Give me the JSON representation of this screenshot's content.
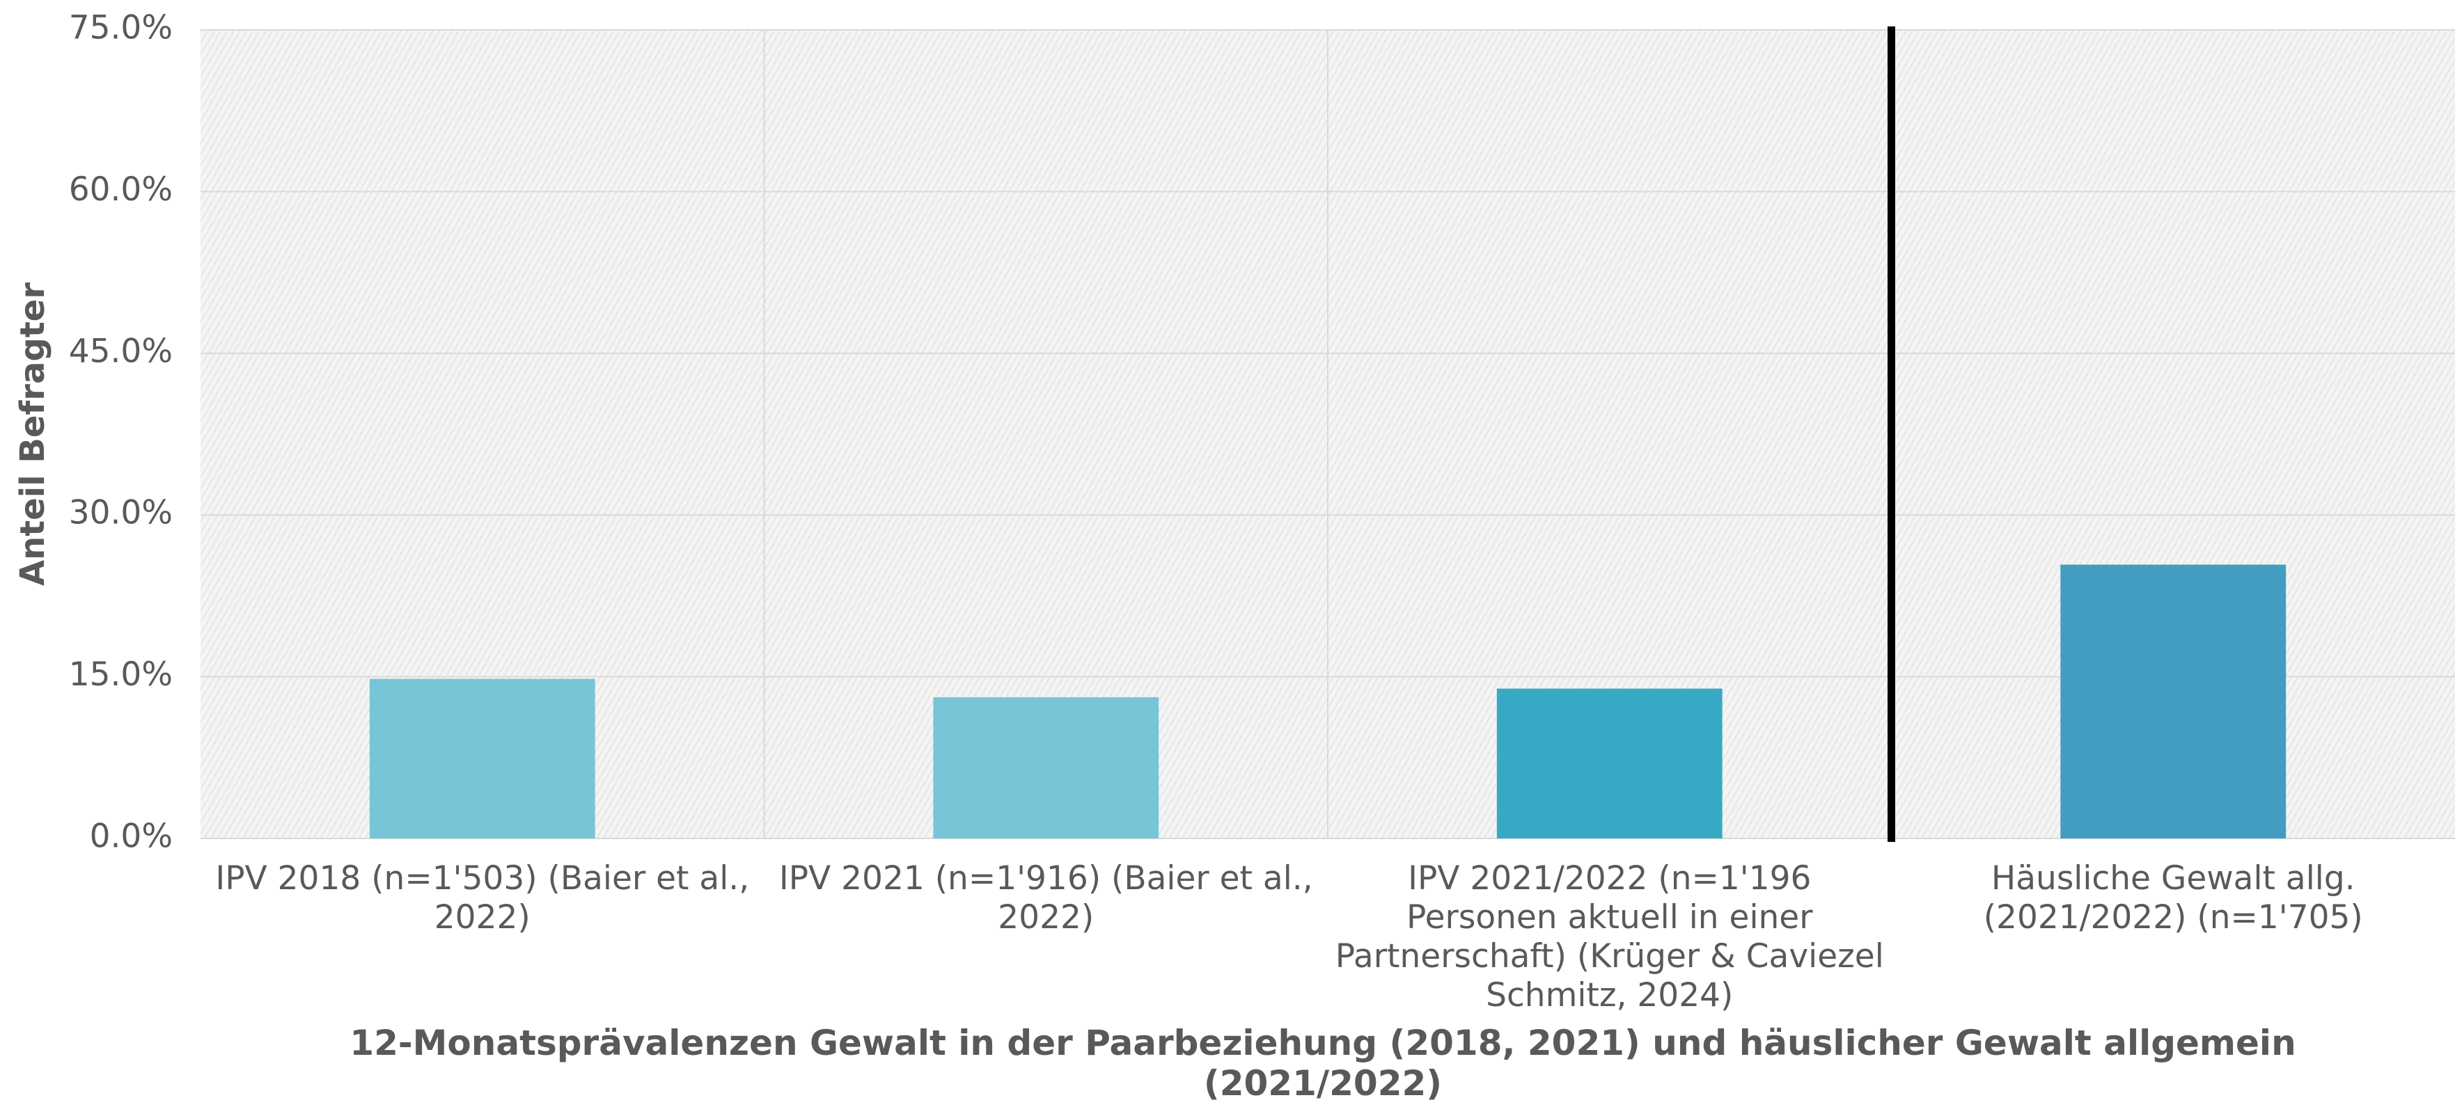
{
  "chart_data": {
    "type": "bar",
    "title": "12-Monatsprävalenzen Gewalt in der Paarbeziehung (2018, 2021) und häuslicher Gewalt allgemein (2021/2022)",
    "y_label": "Anteil Befragter",
    "categories": [
      "IPV 2018 (n=1'503) (Baier et al., 2022)",
      "IPV 2021 (n=1'916) (Baier et al., 2022)",
      "IPV 2021/2022 (n=1'196 Personen aktuell in einer Partnerschaft) (Krüger & Caviezel Schmitz, 2024)",
      "Häusliche Gewalt allg. (2021/2022) (n=1'705)"
    ],
    "values": [
      14.8,
      13.1,
      13.9,
      25.4
    ],
    "colors": [
      "#78c5d8",
      "#78c5d8",
      "#38a9c4",
      "#439dc1"
    ],
    "ylim": [
      0,
      75
    ],
    "yticks": [
      {
        "value": 0,
        "label": "0.0%"
      },
      {
        "value": 15,
        "label": "15.0%"
      },
      {
        "value": 30,
        "label": "30.0%"
      },
      {
        "value": 45,
        "label": "45.0%"
      },
      {
        "value": 60,
        "label": "60.0%"
      },
      {
        "value": 75,
        "label": "75.0%"
      }
    ],
    "grid": true
  }
}
